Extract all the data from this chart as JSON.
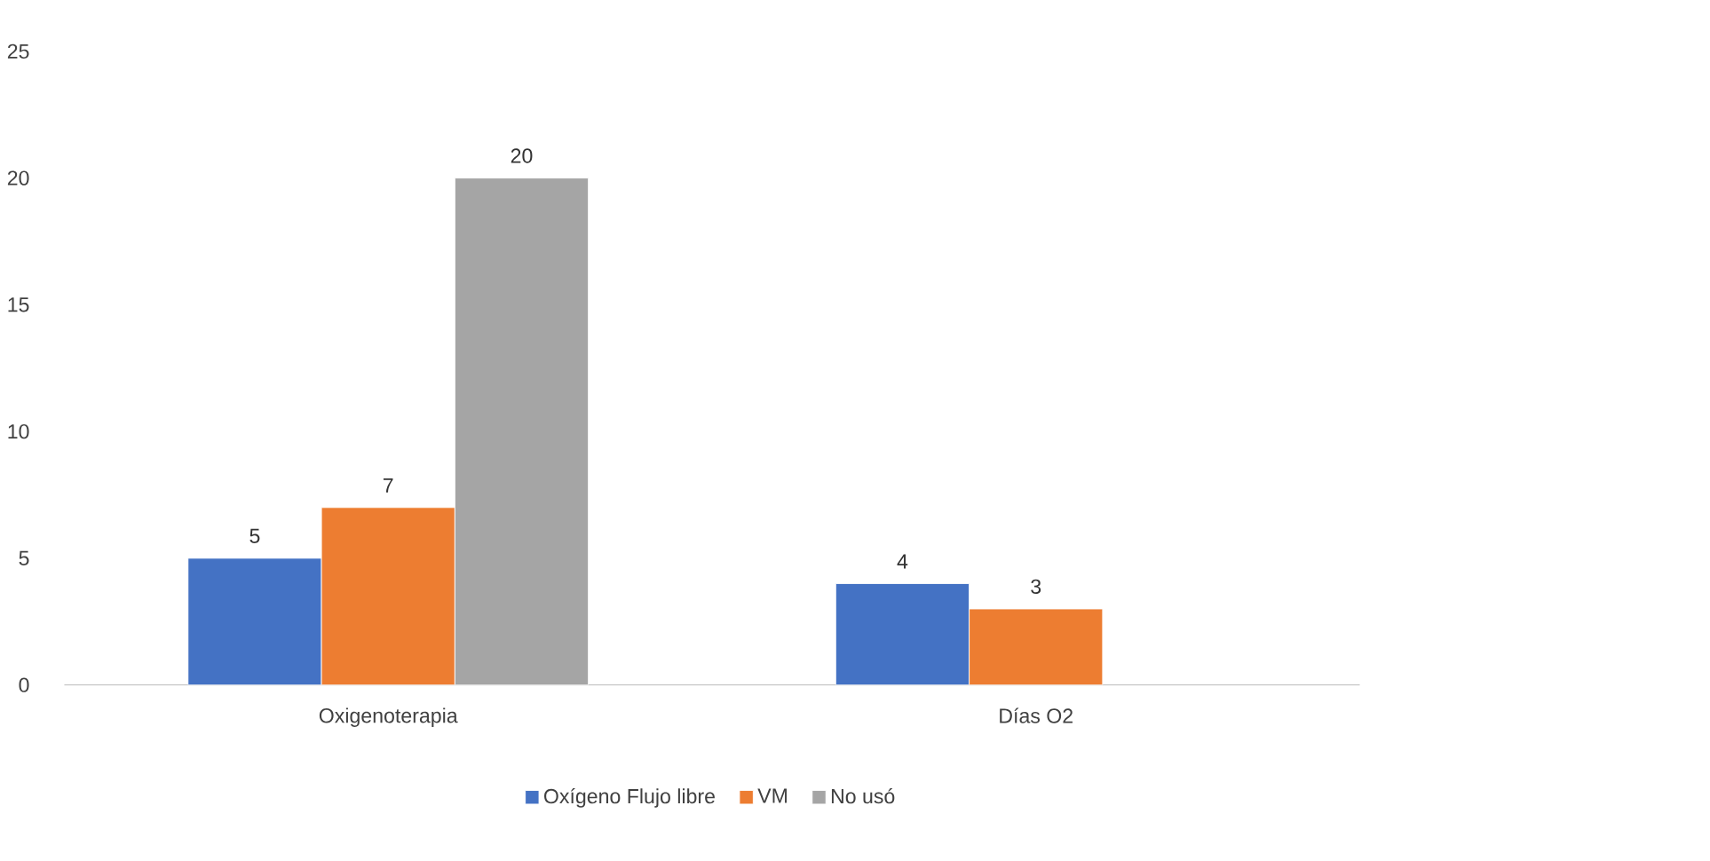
{
  "chart_data": {
    "type": "bar",
    "categories": [
      "Oxigenoterapia",
      "Días O2"
    ],
    "series": [
      {
        "name": "Oxígeno Flujo libre",
        "color": "#4472c4",
        "values": [
          5,
          4
        ]
      },
      {
        "name": "VM",
        "color": "#ed7d31",
        "values": [
          7,
          3
        ]
      },
      {
        "name": "No usó",
        "color": "#a5a5a5",
        "values": [
          20,
          null
        ]
      }
    ],
    "ylim": [
      0,
      25
    ],
    "yticks": [
      0,
      5,
      10,
      15,
      20,
      25
    ],
    "data_labels": true,
    "grid": false,
    "legend": "bottom"
  }
}
